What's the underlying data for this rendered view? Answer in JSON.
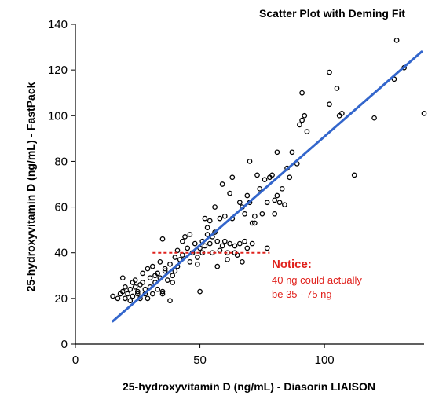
{
  "chart_data": {
    "type": "scatter",
    "title": "Scatter Plot with Deming Fit",
    "xlabel": "25-hydroxyvitamin D (ng/mL) - Diasorin LIAISON",
    "ylabel": "25-hydroxyvitamin D (ng/mL) - FastPack",
    "xlim": [
      0,
      140
    ],
    "ylim": [
      0,
      140
    ],
    "xticks": [
      0,
      50,
      100
    ],
    "yticks": [
      0,
      20,
      40,
      60,
      80,
      100,
      120,
      140
    ],
    "x_tick_labels": [
      "0",
      "50",
      "100"
    ],
    "y_tick_labels": [
      "0",
      "20",
      "40",
      "60",
      "80",
      "100",
      "120",
      "140"
    ],
    "grid": false,
    "colors": {
      "points": "#000000",
      "fit_line": "#3366cc",
      "annotation": "#e0201b"
    },
    "series": [
      {
        "type": "scatter",
        "points": [
          [
            15,
            21
          ],
          [
            17,
            20
          ],
          [
            18,
            22
          ],
          [
            19,
            23
          ],
          [
            19,
            29
          ],
          [
            20,
            25
          ],
          [
            20,
            20
          ],
          [
            21,
            22
          ],
          [
            22,
            24
          ],
          [
            22,
            19
          ],
          [
            23,
            27
          ],
          [
            23,
            21
          ],
          [
            24,
            25
          ],
          [
            24,
            28
          ],
          [
            25,
            22
          ],
          [
            25,
            23
          ],
          [
            26,
            20
          ],
          [
            26,
            26
          ],
          [
            27,
            27
          ],
          [
            27,
            31
          ],
          [
            28,
            24
          ],
          [
            28,
            22
          ],
          [
            29,
            33
          ],
          [
            29,
            20
          ],
          [
            30,
            25
          ],
          [
            30,
            29
          ],
          [
            31,
            22
          ],
          [
            31,
            34
          ],
          [
            32,
            27
          ],
          [
            32,
            30
          ],
          [
            33,
            31
          ],
          [
            33,
            24
          ],
          [
            34,
            29
          ],
          [
            34,
            36
          ],
          [
            35,
            23
          ],
          [
            35,
            22
          ],
          [
            35,
            46
          ],
          [
            36,
            33
          ],
          [
            36,
            32
          ],
          [
            37,
            28
          ],
          [
            38,
            35
          ],
          [
            38,
            19
          ],
          [
            39,
            30
          ],
          [
            39,
            27
          ],
          [
            40,
            38
          ],
          [
            40,
            32
          ],
          [
            41,
            41
          ],
          [
            41,
            34
          ],
          [
            42,
            37
          ],
          [
            43,
            39
          ],
          [
            43,
            45
          ],
          [
            44,
            47
          ],
          [
            45,
            42
          ],
          [
            46,
            48
          ],
          [
            46,
            36
          ],
          [
            47,
            40
          ],
          [
            48,
            44
          ],
          [
            49,
            38
          ],
          [
            49,
            35
          ],
          [
            50,
            42
          ],
          [
            50,
            23
          ],
          [
            51,
            45
          ],
          [
            51,
            40
          ],
          [
            52,
            55
          ],
          [
            52,
            43
          ],
          [
            53,
            51
          ],
          [
            53,
            48
          ],
          [
            54,
            54
          ],
          [
            54,
            44
          ],
          [
            55,
            47
          ],
          [
            55,
            40
          ],
          [
            56,
            49
          ],
          [
            56,
            60
          ],
          [
            57,
            45
          ],
          [
            57,
            34
          ],
          [
            58,
            55
          ],
          [
            58,
            41
          ],
          [
            59,
            70
          ],
          [
            59,
            43
          ],
          [
            60,
            56
          ],
          [
            60,
            45
          ],
          [
            61,
            37
          ],
          [
            61,
            40
          ],
          [
            62,
            66
          ],
          [
            62,
            44
          ],
          [
            63,
            73
          ],
          [
            63,
            55
          ],
          [
            64,
            40
          ],
          [
            64,
            43
          ],
          [
            65,
            39
          ],
          [
            66,
            62
          ],
          [
            66,
            44
          ],
          [
            67,
            60
          ],
          [
            67,
            36
          ],
          [
            68,
            57
          ],
          [
            68,
            45
          ],
          [
            69,
            65
          ],
          [
            69,
            42
          ],
          [
            70,
            80
          ],
          [
            70,
            62
          ],
          [
            71,
            53
          ],
          [
            71,
            44
          ],
          [
            72,
            56
          ],
          [
            72,
            53
          ],
          [
            73,
            74
          ],
          [
            74,
            68
          ],
          [
            75,
            57
          ],
          [
            76,
            72
          ],
          [
            77,
            62
          ],
          [
            77,
            42
          ],
          [
            78,
            73
          ],
          [
            79,
            74
          ],
          [
            80,
            57
          ],
          [
            80,
            63
          ],
          [
            81,
            84
          ],
          [
            81,
            65
          ],
          [
            82,
            62
          ],
          [
            83,
            68
          ],
          [
            84,
            61
          ],
          [
            85,
            77
          ],
          [
            86,
            73
          ],
          [
            87,
            84
          ],
          [
            89,
            79
          ],
          [
            90,
            96
          ],
          [
            91,
            98
          ],
          [
            91,
            110
          ],
          [
            92,
            100
          ],
          [
            93,
            93
          ],
          [
            102,
            119
          ],
          [
            102,
            105
          ],
          [
            105,
            112
          ],
          [
            106,
            100
          ],
          [
            107,
            101
          ],
          [
            112,
            74
          ],
          [
            120,
            99
          ],
          [
            128,
            116
          ],
          [
            129,
            133
          ],
          [
            132,
            121
          ],
          [
            140,
            101
          ]
        ]
      },
      {
        "type": "line",
        "name": "Deming fit",
        "x": [
          15,
          139
        ],
        "y": [
          10,
          128
        ]
      }
    ],
    "annotation": {
      "reference_line": {
        "x": [
          31,
          78
        ],
        "y": [
          40,
          40
        ],
        "style": "dashed"
      },
      "title": "Notice:",
      "lines": [
        "40 ng could actually",
        "be 35 - 75 ng"
      ]
    }
  }
}
